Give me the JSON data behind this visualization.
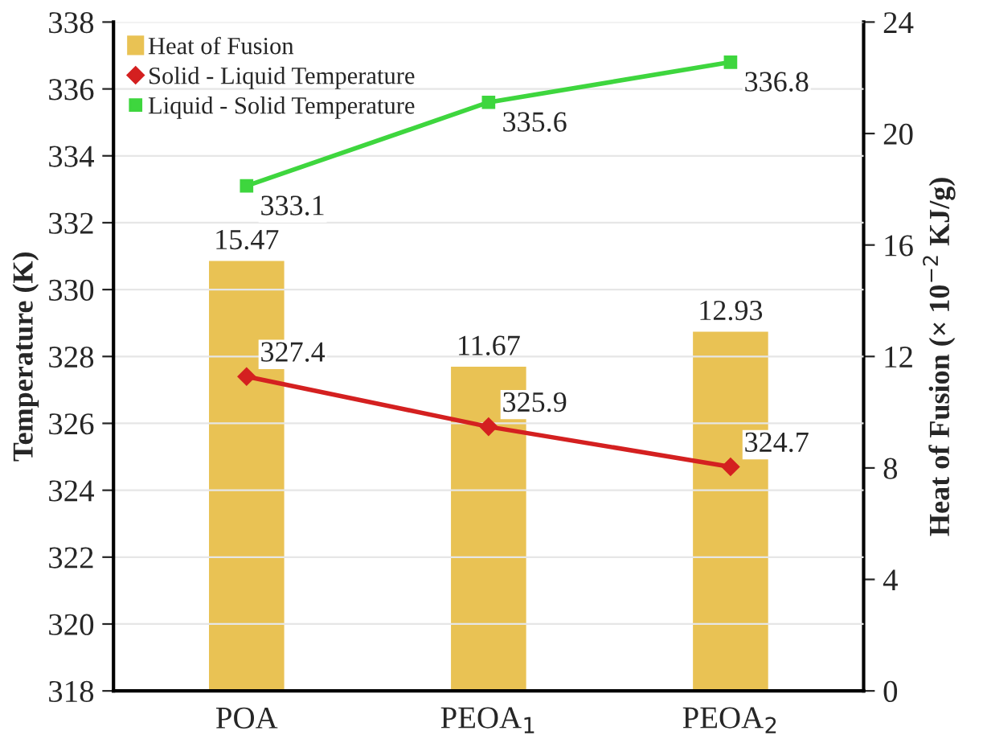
{
  "chart_data": {
    "type": "bar",
    "categories": [
      "POA",
      "PEOA$_{1}$",
      "PEOA$_{2}$"
    ],
    "ylabel": "Temperature (K)",
    "y2label": "Heat of Fusion (× 10$^{−2}$ KJ/g)",
    "series": [
      {
        "name": "Heat of Fusion",
        "axis": "y2",
        "color": "#e9c254",
        "values": [
          15.47,
          11.67,
          12.93
        ]
      },
      {
        "name": "Solid - Liquid Temperature",
        "type": "line",
        "axis": "y",
        "color": "#d42020",
        "marker": "diamond",
        "values": [
          327.4,
          325.9,
          324.7
        ]
      },
      {
        "name": "Liquid - Solid Temperature",
        "type": "line",
        "axis": "y",
        "color": "#3ed63e",
        "marker": "square",
        "values": [
          333.1,
          335.6,
          336.8
        ]
      }
    ],
    "ylim": [
      318,
      338
    ],
    "yticks": [
      318,
      320,
      322,
      324,
      326,
      328,
      330,
      332,
      334,
      336,
      338
    ],
    "y2lim": [
      0,
      24
    ],
    "y2ticks": [
      0,
      4,
      8,
      12,
      16,
      20,
      24
    ],
    "grid": "y",
    "legend": "top left",
    "data_labels": true
  }
}
